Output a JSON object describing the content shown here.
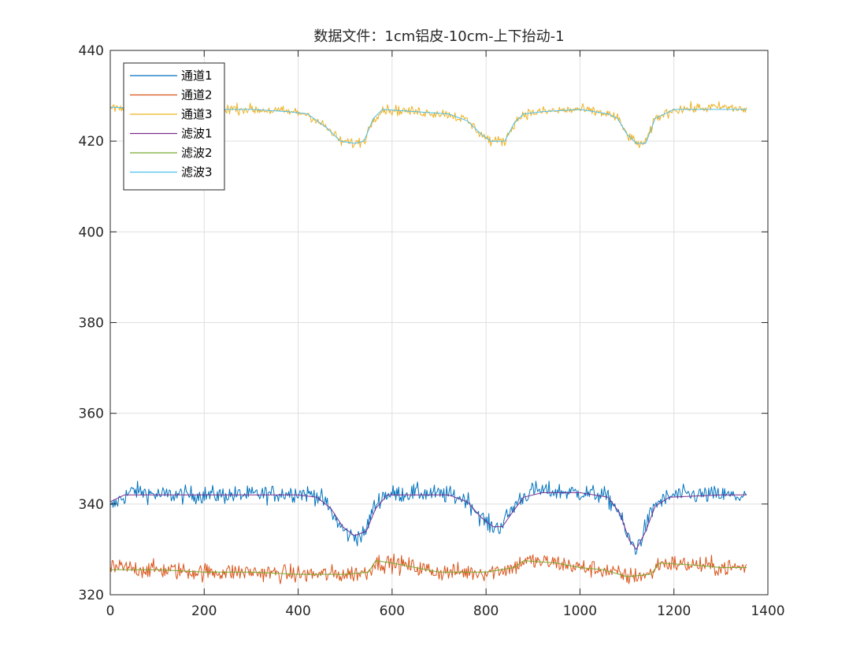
{
  "chart_data": {
    "type": "line",
    "title": "数据文件：1cm铝皮-10cm-上下抬动-1",
    "xlabel": "",
    "ylabel": "",
    "xlim": [
      0,
      1400
    ],
    "ylim": [
      320,
      440
    ],
    "xticks": [
      0,
      200,
      400,
      600,
      800,
      1000,
      1200,
      1400
    ],
    "yticks": [
      320,
      340,
      360,
      380,
      400,
      420,
      440
    ],
    "grid": true,
    "legend_position": "top-left",
    "series": [
      {
        "name": "通道1",
        "color": "#0072BD",
        "noisy": true,
        "points": [
          [
            0,
            339
          ],
          [
            20,
            341
          ],
          [
            50,
            343
          ],
          [
            100,
            342
          ],
          [
            200,
            342
          ],
          [
            300,
            342
          ],
          [
            400,
            342.5
          ],
          [
            440,
            342
          ],
          [
            460,
            340
          ],
          [
            490,
            335
          ],
          [
            510,
            333
          ],
          [
            540,
            333
          ],
          [
            560,
            339
          ],
          [
            580,
            342
          ],
          [
            650,
            342.5
          ],
          [
            720,
            342
          ],
          [
            760,
            341
          ],
          [
            790,
            337
          ],
          [
            810,
            335
          ],
          [
            830,
            335
          ],
          [
            850,
            338
          ],
          [
            870,
            341
          ],
          [
            900,
            343
          ],
          [
            1000,
            342.5
          ],
          [
            1050,
            342
          ],
          [
            1080,
            339
          ],
          [
            1100,
            333
          ],
          [
            1120,
            330
          ],
          [
            1140,
            335
          ],
          [
            1160,
            340
          ],
          [
            1200,
            342
          ],
          [
            1300,
            342
          ],
          [
            1355,
            341.5
          ]
        ]
      },
      {
        "name": "通道2",
        "color": "#D95319",
        "noisy": true,
        "points": [
          [
            0,
            326
          ],
          [
            100,
            325.5
          ],
          [
            200,
            325
          ],
          [
            300,
            325
          ],
          [
            400,
            324.5
          ],
          [
            500,
            324.5
          ],
          [
            550,
            325
          ],
          [
            560,
            327
          ],
          [
            600,
            327
          ],
          [
            650,
            326
          ],
          [
            700,
            325
          ],
          [
            800,
            325
          ],
          [
            860,
            326
          ],
          [
            880,
            327.5
          ],
          [
            950,
            327
          ],
          [
            1000,
            326
          ],
          [
            1050,
            325.5
          ],
          [
            1100,
            324
          ],
          [
            1150,
            324.5
          ],
          [
            1170,
            327
          ],
          [
            1250,
            326.5
          ],
          [
            1300,
            326
          ],
          [
            1355,
            326
          ]
        ]
      },
      {
        "name": "通道3",
        "color": "#EDB120",
        "noisy": true,
        "points": [
          [
            0,
            427.5
          ],
          [
            100,
            427
          ],
          [
            200,
            427.5
          ],
          [
            300,
            427
          ],
          [
            380,
            426.5
          ],
          [
            420,
            426
          ],
          [
            460,
            423
          ],
          [
            490,
            420
          ],
          [
            520,
            419.5
          ],
          [
            540,
            420
          ],
          [
            560,
            425
          ],
          [
            580,
            427
          ],
          [
            650,
            426.5
          ],
          [
            720,
            426
          ],
          [
            760,
            424.5
          ],
          [
            790,
            421.5
          ],
          [
            810,
            420
          ],
          [
            840,
            420
          ],
          [
            860,
            424
          ],
          [
            880,
            426
          ],
          [
            920,
            426.5
          ],
          [
            1000,
            427
          ],
          [
            1060,
            426
          ],
          [
            1080,
            425
          ],
          [
            1100,
            421.5
          ],
          [
            1120,
            419.5
          ],
          [
            1140,
            419.5
          ],
          [
            1160,
            425
          ],
          [
            1200,
            427
          ],
          [
            1300,
            427.5
          ],
          [
            1355,
            427
          ]
        ]
      },
      {
        "name": "滤波1",
        "color": "#7E2F8E",
        "noisy": false,
        "points": [
          [
            0,
            340.5
          ],
          [
            30,
            342
          ],
          [
            100,
            342
          ],
          [
            200,
            342
          ],
          [
            300,
            342
          ],
          [
            400,
            342
          ],
          [
            440,
            341.5
          ],
          [
            470,
            339
          ],
          [
            495,
            335
          ],
          [
            520,
            333
          ],
          [
            545,
            334
          ],
          [
            565,
            339
          ],
          [
            590,
            342
          ],
          [
            650,
            342
          ],
          [
            720,
            342
          ],
          [
            760,
            340.5
          ],
          [
            790,
            337
          ],
          [
            815,
            335
          ],
          [
            835,
            335
          ],
          [
            855,
            338
          ],
          [
            880,
            341.5
          ],
          [
            920,
            342.5
          ],
          [
            1000,
            342.5
          ],
          [
            1060,
            341.5
          ],
          [
            1085,
            338
          ],
          [
            1105,
            332
          ],
          [
            1120,
            330
          ],
          [
            1140,
            334
          ],
          [
            1160,
            339.5
          ],
          [
            1190,
            341.5
          ],
          [
            1300,
            342
          ],
          [
            1355,
            342
          ]
        ]
      },
      {
        "name": "滤波2",
        "color": "#77AC30",
        "noisy": false,
        "points": [
          [
            0,
            325.5
          ],
          [
            100,
            325.5
          ],
          [
            200,
            325
          ],
          [
            300,
            325
          ],
          [
            400,
            324.5
          ],
          [
            500,
            324.5
          ],
          [
            550,
            325
          ],
          [
            565,
            327.5
          ],
          [
            600,
            327
          ],
          [
            650,
            326
          ],
          [
            700,
            325
          ],
          [
            800,
            325
          ],
          [
            860,
            326
          ],
          [
            880,
            327.5
          ],
          [
            950,
            327
          ],
          [
            1000,
            326
          ],
          [
            1050,
            325.5
          ],
          [
            1100,
            324
          ],
          [
            1150,
            324.5
          ],
          [
            1170,
            327
          ],
          [
            1250,
            326.5
          ],
          [
            1300,
            326
          ],
          [
            1355,
            326
          ]
        ]
      },
      {
        "name": "滤波3",
        "color": "#4DBEEE",
        "noisy": false,
        "points": [
          [
            0,
            427.5
          ],
          [
            100,
            427
          ],
          [
            200,
            427
          ],
          [
            300,
            427
          ],
          [
            380,
            426.5
          ],
          [
            420,
            426
          ],
          [
            460,
            423
          ],
          [
            490,
            420
          ],
          [
            520,
            419.5
          ],
          [
            540,
            420
          ],
          [
            560,
            425
          ],
          [
            580,
            427
          ],
          [
            650,
            426.5
          ],
          [
            720,
            426
          ],
          [
            760,
            424.5
          ],
          [
            790,
            421.5
          ],
          [
            810,
            420
          ],
          [
            840,
            420
          ],
          [
            860,
            424
          ],
          [
            880,
            426
          ],
          [
            920,
            426.5
          ],
          [
            1000,
            427
          ],
          [
            1060,
            426
          ],
          [
            1080,
            425
          ],
          [
            1100,
            421.5
          ],
          [
            1120,
            419.5
          ],
          [
            1140,
            419.5
          ],
          [
            1160,
            425
          ],
          [
            1200,
            427
          ],
          [
            1300,
            427
          ],
          [
            1355,
            427
          ]
        ]
      }
    ]
  }
}
